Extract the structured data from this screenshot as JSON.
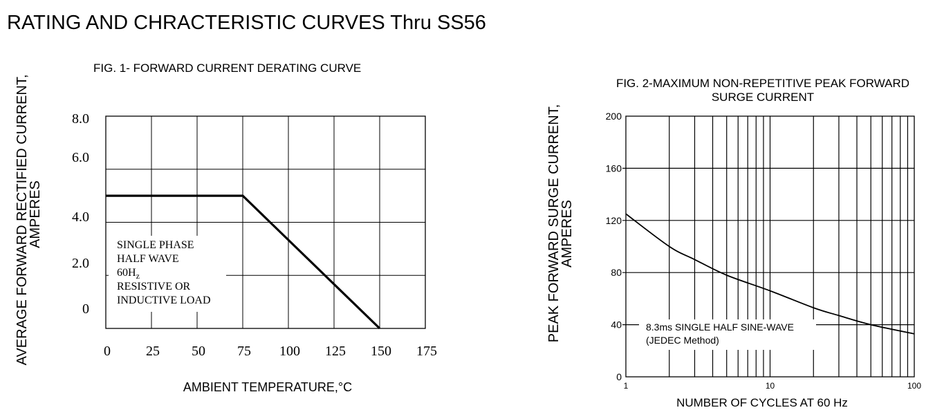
{
  "page_title": "RATING AND CHRACTERISTIC CURVES Thru SS56",
  "colors": {
    "ink": "#000000",
    "background": "#ffffff"
  },
  "chart_data": [
    {
      "type": "line",
      "title": "FIG. 1- FORWARD CURRENT DERATING CURVE",
      "xlabel": "AMBIENT TEMPERATURE,°C",
      "ylabel": "AVERAGE FORWARD RECTIFIED CURRENT,",
      "ylabel2": "AMPERES",
      "x_ticks": [
        "0",
        "25",
        "50",
        "75",
        "100",
        "125",
        "150",
        "175"
      ],
      "y_tick_labels": [
        {
          "label": "8.0",
          "value": 8.0
        },
        {
          "label": "6.0",
          "value": 6.0
        },
        {
          "label": "4.0",
          "value": 4.0
        },
        {
          "label": "2.0",
          "value": 2.0
        },
        {
          "label": "0",
          "value": 0
        }
      ],
      "xlim": [
        0,
        175
      ],
      "ylim": [
        0,
        8.0
      ],
      "grid": true,
      "series": [
        {
          "x": [
            0,
            75,
            150
          ],
          "y": [
            5.0,
            5.0,
            0
          ]
        }
      ],
      "annotation": [
        "SINGLE PHASE",
        "HALF WAVE",
        "60Hz",
        "RESISTIVE OR",
        "INDUCTIVE LOAD"
      ]
    },
    {
      "type": "line",
      "title": "FIG. 2-MAXIMUM NON-REPETITIVE PEAK FORWARD",
      "title2": "SURGE CURRENT",
      "xlabel": "NUMBER OF CYCLES AT 60 Hz",
      "ylabel": "PEAK  FORWARD SURGE CURRENT,",
      "ylabel2": "AMPERES",
      "x_scale": "log",
      "x_ticks": [
        "1",
        "10",
        "100"
      ],
      "y_ticks": [
        "0",
        "40",
        "80",
        "120",
        "160",
        "200"
      ],
      "xlim": [
        1,
        100
      ],
      "ylim": [
        0,
        200
      ],
      "grid": true,
      "series": [
        {
          "x": [
            1,
            2,
            3,
            5,
            10,
            20,
            30,
            50,
            100
          ],
          "y": [
            125,
            100,
            90,
            78,
            66,
            53,
            47,
            40,
            33
          ]
        }
      ],
      "annotation": [
        "8.3ms SINGLE HALF SINE-WAVE",
        "(JEDEC Method)"
      ]
    }
  ]
}
